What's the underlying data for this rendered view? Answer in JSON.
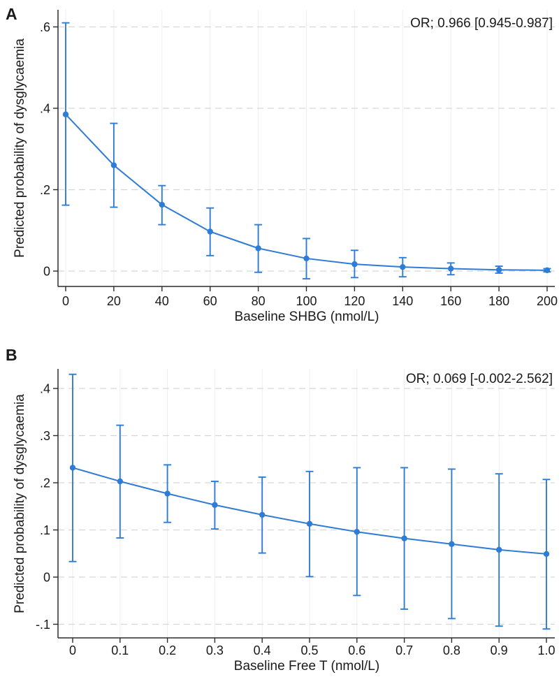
{
  "figure_title": "",
  "colors": {
    "accent": "#2f7cd6",
    "axis": "#2b2b2b",
    "grid_horizontal": "#d6d6d6",
    "grid_vertical": "#eaeff5",
    "text": "#1a1a1a",
    "background": "#ffffff"
  },
  "chart_data": [
    {
      "type": "line",
      "panel_label": "A",
      "annotation": "OR; 0.966 [0.945-0.987]",
      "xlabel": "Baseline SHBG (nmol/L)",
      "ylabel": "Predicted probability of dysglycaemia",
      "legend": "none",
      "grid": "horizontal-dashed and faint vertical",
      "marker": "circle",
      "x": [
        0,
        20,
        40,
        60,
        80,
        100,
        120,
        140,
        160,
        180,
        200
      ],
      "y": [
        0.385,
        0.26,
        0.163,
        0.097,
        0.056,
        0.031,
        0.017,
        0.01,
        0.006,
        0.003,
        0.002
      ],
      "ci_low": [
        0.162,
        0.157,
        0.114,
        0.038,
        -0.003,
        -0.019,
        -0.016,
        -0.014,
        -0.009,
        -0.005,
        -0.002
      ],
      "ci_high": [
        0.61,
        0.363,
        0.21,
        0.155,
        0.114,
        0.08,
        0.051,
        0.033,
        0.02,
        0.012,
        0.006
      ],
      "xtick_labels": [
        "0",
        "20",
        "40",
        "60",
        "80",
        "100",
        "120",
        "140",
        "160",
        "180",
        "200"
      ],
      "yticks": [
        0,
        0.2,
        0.4,
        0.6
      ],
      "ytick_labels": [
        "0",
        ".2",
        ".4",
        ".6"
      ],
      "xlim": [
        -3,
        203
      ],
      "ylim": [
        -0.04,
        0.64
      ]
    },
    {
      "type": "line",
      "panel_label": "B",
      "annotation": "OR; 0.069 [-0.002-2.562]",
      "xlabel": "Baseline Free T (nmol/L)",
      "ylabel": "Predicted probability of dysglycaemia",
      "legend": "none",
      "grid": "horizontal-dashed and faint vertical",
      "marker": "circle",
      "x": [
        0,
        0.1,
        0.2,
        0.3,
        0.4,
        0.5,
        0.6,
        0.7,
        0.8,
        0.9,
        1.0
      ],
      "y": [
        0.232,
        0.203,
        0.177,
        0.153,
        0.132,
        0.113,
        0.096,
        0.082,
        0.07,
        0.058,
        0.049
      ],
      "ci_low": [
        0.033,
        0.083,
        0.116,
        0.102,
        0.051,
        0.001,
        -0.039,
        -0.068,
        -0.088,
        -0.104,
        -0.11
      ],
      "ci_high": [
        0.43,
        0.322,
        0.238,
        0.203,
        0.212,
        0.224,
        0.232,
        0.232,
        0.229,
        0.219,
        0.207
      ],
      "xtick_labels": [
        "0",
        "0.1",
        "0.2",
        "0.3",
        "0.4",
        "0.5",
        "0.6",
        "0.7",
        "0.8",
        "0.9",
        "1.0"
      ],
      "yticks": [
        -0.1,
        0,
        0.1,
        0.2,
        0.3,
        0.4
      ],
      "ytick_labels": [
        "-.1",
        "0",
        ".1",
        ".2",
        ".3",
        ".4"
      ],
      "xlim": [
        -0.03,
        1.02
      ],
      "ylim": [
        -0.13,
        0.44
      ]
    }
  ]
}
